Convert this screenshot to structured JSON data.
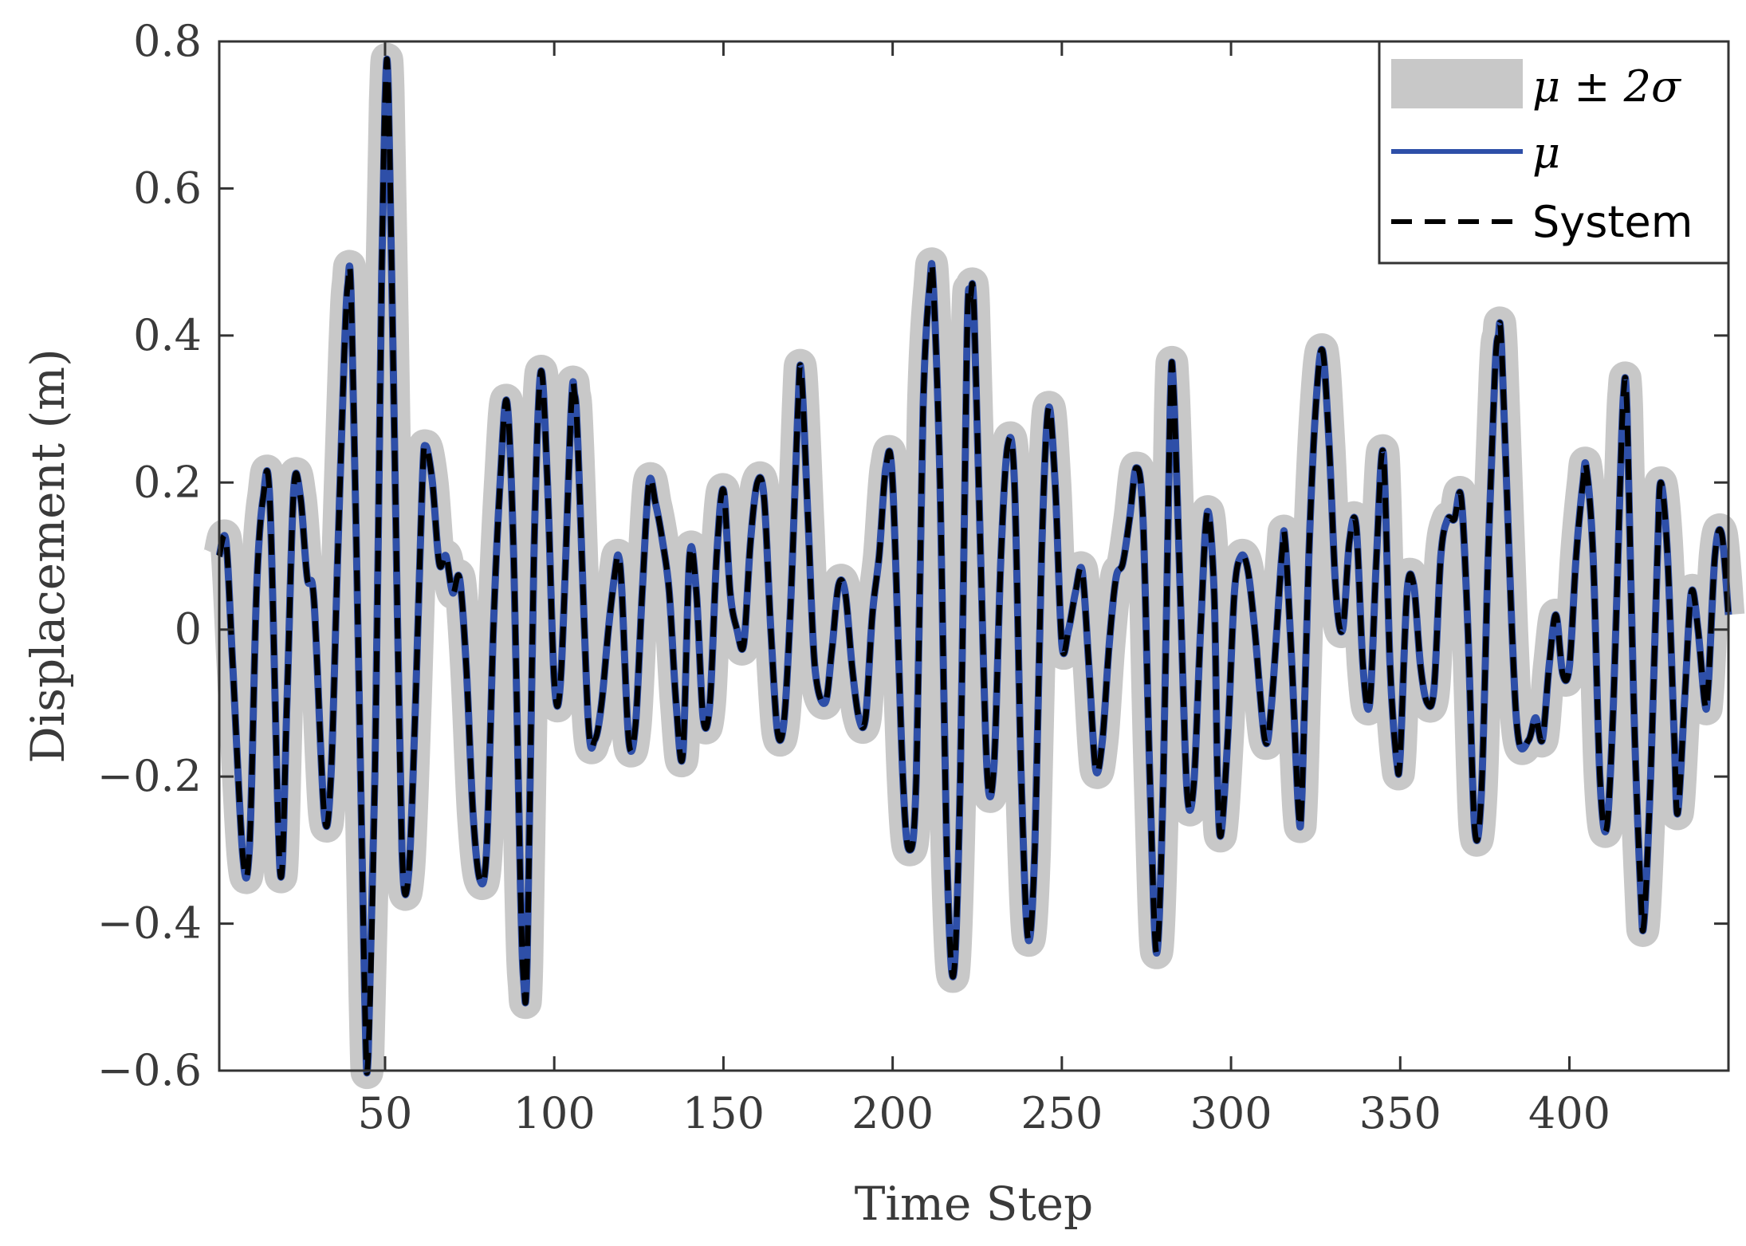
{
  "chart_data": {
    "type": "line",
    "title": "",
    "xlabel": "Time Step",
    "ylabel": "Displacement (m)",
    "xlim": [
      1,
      447
    ],
    "ylim": [
      -0.6,
      0.8
    ],
    "xticks": [
      50,
      100,
      150,
      200,
      250,
      300,
      350,
      400
    ],
    "xtick_labels": [
      "50",
      "100",
      "150",
      "200",
      "250",
      "300",
      "350",
      "400"
    ],
    "yticks": [
      -0.6,
      -0.4,
      -0.2,
      0,
      0.2,
      0.4,
      0.6,
      0.8
    ],
    "ytick_labels": [
      "−0.6",
      "−0.4",
      "−0.2",
      "0",
      "0.2",
      "0.4",
      "0.6",
      "0.8"
    ],
    "grid": false,
    "legend_position": "top-right",
    "legend": {
      "band": "μ ± 2σ",
      "mean": "μ",
      "system": "System"
    },
    "band_halfwidth": 0.022,
    "colors": {
      "band": "#c8c8c8",
      "mean": "#2e4fa8",
      "system": "#000000",
      "axis": "#333333"
    },
    "series": [
      {
        "name": "System",
        "keypoints": [
          [
            1,
            0.1
          ],
          [
            3,
            0.12
          ],
          [
            5,
            -0.05
          ],
          [
            8,
            -0.31
          ],
          [
            10,
            -0.29
          ],
          [
            12,
            0.05
          ],
          [
            14,
            0.18
          ],
          [
            16,
            0.17
          ],
          [
            19,
            -0.33
          ],
          [
            21,
            -0.1
          ],
          [
            23,
            0.19
          ],
          [
            25,
            0.18
          ],
          [
            27,
            0.07
          ],
          [
            29,
            0.04
          ],
          [
            32,
            -0.25
          ],
          [
            34,
            -0.2
          ],
          [
            36,
            0.1
          ],
          [
            38,
            0.38
          ],
          [
            39,
            0.47
          ],
          [
            40,
            0.45
          ],
          [
            42,
            0.0
          ],
          [
            44,
            -0.5
          ],
          [
            45,
            -0.58
          ],
          [
            47,
            -0.2
          ],
          [
            49,
            0.48
          ],
          [
            50,
            0.72
          ],
          [
            51,
            0.73
          ],
          [
            53,
            0.2
          ],
          [
            55,
            -0.3
          ],
          [
            57,
            -0.33
          ],
          [
            59,
            -0.1
          ],
          [
            61,
            0.2
          ],
          [
            62,
            0.25
          ],
          [
            64,
            0.2
          ],
          [
            66,
            0.09
          ],
          [
            68,
            0.1
          ],
          [
            70,
            0.05
          ],
          [
            72,
            0.07
          ],
          [
            74,
            -0.05
          ],
          [
            76,
            -0.25
          ],
          [
            78,
            -0.34
          ],
          [
            80,
            -0.3
          ],
          [
            82,
            0.0
          ],
          [
            84,
            0.2
          ],
          [
            86,
            0.31
          ],
          [
            88,
            0.1
          ],
          [
            90,
            -0.35
          ],
          [
            91,
            -0.48
          ],
          [
            92,
            -0.45
          ],
          [
            94,
            0.1
          ],
          [
            96,
            0.35
          ],
          [
            98,
            0.2
          ],
          [
            100,
            -0.07
          ],
          [
            102,
            -0.06
          ],
          [
            105,
            0.3
          ],
          [
            106,
            0.32
          ],
          [
            107,
            0.25
          ],
          [
            110,
            -0.12
          ],
          [
            112,
            -0.15
          ],
          [
            114,
            -0.1
          ],
          [
            116,
            0.0
          ],
          [
            118,
            0.08
          ],
          [
            119,
            0.1
          ],
          [
            120,
            0.05
          ],
          [
            122,
            -0.15
          ],
          [
            124,
            -0.13
          ],
          [
            126,
            0.05
          ],
          [
            128,
            0.2
          ],
          [
            130,
            0.17
          ],
          [
            132,
            0.12
          ],
          [
            134,
            0.05
          ],
          [
            136,
            -0.1
          ],
          [
            138,
            -0.17
          ],
          [
            140,
            0.1
          ],
          [
            142,
            0.05
          ],
          [
            144,
            -0.12
          ],
          [
            146,
            -0.1
          ],
          [
            148,
            0.1
          ],
          [
            150,
            0.19
          ],
          [
            152,
            0.05
          ],
          [
            154,
            0.0
          ],
          [
            156,
            -0.02
          ],
          [
            158,
            0.12
          ],
          [
            160,
            0.2
          ],
          [
            162,
            0.18
          ],
          [
            164,
            0.0
          ],
          [
            166,
            -0.14
          ],
          [
            168,
            -0.12
          ],
          [
            170,
            0.05
          ],
          [
            172,
            0.3
          ],
          [
            173,
            0.35
          ],
          [
            175,
            0.15
          ],
          [
            177,
            -0.05
          ],
          [
            180,
            -0.1
          ],
          [
            182,
            -0.03
          ],
          [
            184,
            0.06
          ],
          [
            186,
            0.05
          ],
          [
            188,
            -0.05
          ],
          [
            190,
            -0.12
          ],
          [
            192,
            -0.12
          ],
          [
            194,
            0.02
          ],
          [
            196,
            0.1
          ],
          [
            198,
            0.22
          ],
          [
            200,
            0.2
          ],
          [
            203,
            -0.2
          ],
          [
            205,
            -0.3
          ],
          [
            207,
            -0.2
          ],
          [
            209,
            0.3
          ],
          [
            211,
            0.47
          ],
          [
            212,
            0.47
          ],
          [
            214,
            0.2
          ],
          [
            216,
            -0.3
          ],
          [
            218,
            -0.47
          ],
          [
            220,
            -0.2
          ],
          [
            222,
            0.4
          ],
          [
            223,
            0.45
          ],
          [
            224,
            0.44
          ],
          [
            226,
            0.1
          ],
          [
            228,
            -0.2
          ],
          [
            230,
            -0.18
          ],
          [
            232,
            0.1
          ],
          [
            234,
            0.25
          ],
          [
            236,
            0.2
          ],
          [
            238,
            -0.2
          ],
          [
            240,
            -0.42
          ],
          [
            242,
            -0.3
          ],
          [
            244,
            0.1
          ],
          [
            246,
            0.3
          ],
          [
            248,
            0.2
          ],
          [
            250,
            -0.02
          ],
          [
            252,
            0.0
          ],
          [
            254,
            0.05
          ],
          [
            256,
            0.08
          ],
          [
            258,
            -0.05
          ],
          [
            260,
            -0.19
          ],
          [
            262,
            -0.15
          ],
          [
            264,
            -0.02
          ],
          [
            266,
            0.07
          ],
          [
            268,
            0.09
          ],
          [
            270,
            0.15
          ],
          [
            272,
            0.22
          ],
          [
            274,
            0.15
          ],
          [
            276,
            -0.2
          ],
          [
            278,
            -0.44
          ],
          [
            280,
            -0.2
          ],
          [
            282,
            0.3
          ],
          [
            283,
            0.33
          ],
          [
            285,
            0.05
          ],
          [
            287,
            -0.22
          ],
          [
            289,
            -0.21
          ],
          [
            291,
            0.0
          ],
          [
            293,
            0.16
          ],
          [
            295,
            0.05
          ],
          [
            296,
            -0.2
          ],
          [
            297,
            -0.28
          ],
          [
            299,
            -0.15
          ],
          [
            301,
            0.05
          ],
          [
            303,
            0.1
          ],
          [
            305,
            0.08
          ],
          [
            307,
            0.0
          ],
          [
            310,
            -0.15
          ],
          [
            312,
            -0.1
          ],
          [
            315,
            0.1
          ],
          [
            316,
            0.12
          ],
          [
            318,
            -0.05
          ],
          [
            320,
            -0.25
          ],
          [
            321,
            -0.22
          ],
          [
            323,
            0.1
          ],
          [
            325,
            0.3
          ],
          [
            327,
            0.38
          ],
          [
            329,
            0.25
          ],
          [
            331,
            0.05
          ],
          [
            333,
            0.0
          ],
          [
            335,
            0.12
          ],
          [
            337,
            0.14
          ],
          [
            339,
            -0.05
          ],
          [
            341,
            -0.1
          ],
          [
            343,
            0.1
          ],
          [
            345,
            0.24
          ],
          [
            347,
            -0.05
          ],
          [
            349,
            -0.18
          ],
          [
            350,
            -0.17
          ],
          [
            352,
            0.05
          ],
          [
            354,
            0.06
          ],
          [
            356,
            -0.05
          ],
          [
            358,
            -0.1
          ],
          [
            360,
            -0.08
          ],
          [
            362,
            0.1
          ],
          [
            364,
            0.15
          ],
          [
            366,
            0.15
          ],
          [
            368,
            0.18
          ],
          [
            370,
            0.0
          ],
          [
            372,
            -0.27
          ],
          [
            374,
            -0.22
          ],
          [
            376,
            0.1
          ],
          [
            378,
            0.35
          ],
          [
            379,
            0.4
          ],
          [
            380,
            0.38
          ],
          [
            383,
            0.0
          ],
          [
            385,
            -0.15
          ],
          [
            388,
            -0.15
          ],
          [
            390,
            -0.12
          ],
          [
            392,
            -0.15
          ],
          [
            394,
            -0.05
          ],
          [
            396,
            0.02
          ],
          [
            398,
            -0.06
          ],
          [
            400,
            -0.05
          ],
          [
            402,
            0.1
          ],
          [
            404,
            0.2
          ],
          [
            405,
            0.22
          ],
          [
            407,
            0.1
          ],
          [
            409,
            -0.2
          ],
          [
            411,
            -0.27
          ],
          [
            413,
            -0.1
          ],
          [
            415,
            0.2
          ],
          [
            416,
            0.32
          ],
          [
            417,
            0.3
          ],
          [
            419,
            -0.1
          ],
          [
            421,
            -0.35
          ],
          [
            422,
            -0.4
          ],
          [
            424,
            -0.2
          ],
          [
            426,
            0.1
          ],
          [
            427,
            0.2
          ],
          [
            429,
            0.1
          ],
          [
            431,
            -0.15
          ],
          [
            432,
            -0.25
          ],
          [
            434,
            -0.1
          ],
          [
            436,
            0.05
          ],
          [
            438,
            0.0
          ],
          [
            440,
            -0.1
          ],
          [
            441,
            -0.08
          ],
          [
            443,
            0.1
          ],
          [
            445,
            0.13
          ],
          [
            447,
            0.02
          ]
        ]
      },
      {
        "name": "μ",
        "same_as": "System"
      }
    ]
  }
}
